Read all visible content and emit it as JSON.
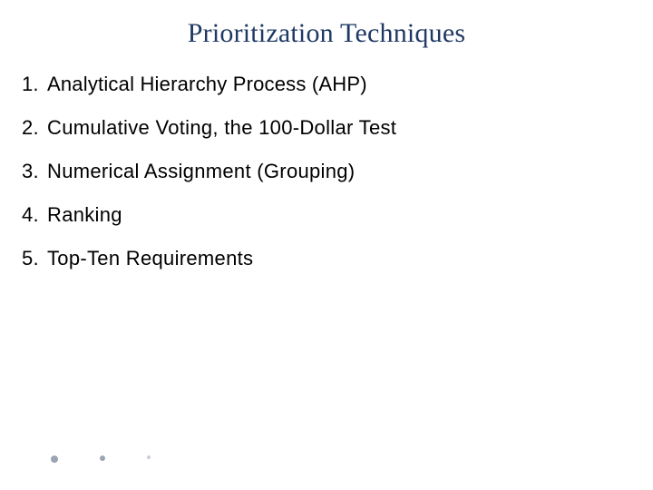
{
  "title": {
    "text": "Prioritization Techniques",
    "color": "#1f3864",
    "fontsize": 30,
    "fontweight": "400"
  },
  "list": {
    "fontsize": 22,
    "color": "#000000",
    "items": [
      {
        "number": "1.",
        "text": "Analytical Hierarchy Process (AHP)"
      },
      {
        "number": "2.",
        "text": "Cumulative Voting, the 100-Dollar Test"
      },
      {
        "number": "3.",
        "text": "Numerical Assignment (Grouping)"
      },
      {
        "number": "4.",
        "text": "Ranking"
      },
      {
        "number": "5.",
        "text": "Top-Ten Requirements"
      }
    ]
  },
  "decor": {
    "dots": [
      {
        "size": 8,
        "color": "#9aa5b1"
      },
      {
        "size": 6,
        "color": "#9aa5b1"
      },
      {
        "size": 4,
        "color": "#c7cdd6"
      }
    ]
  }
}
